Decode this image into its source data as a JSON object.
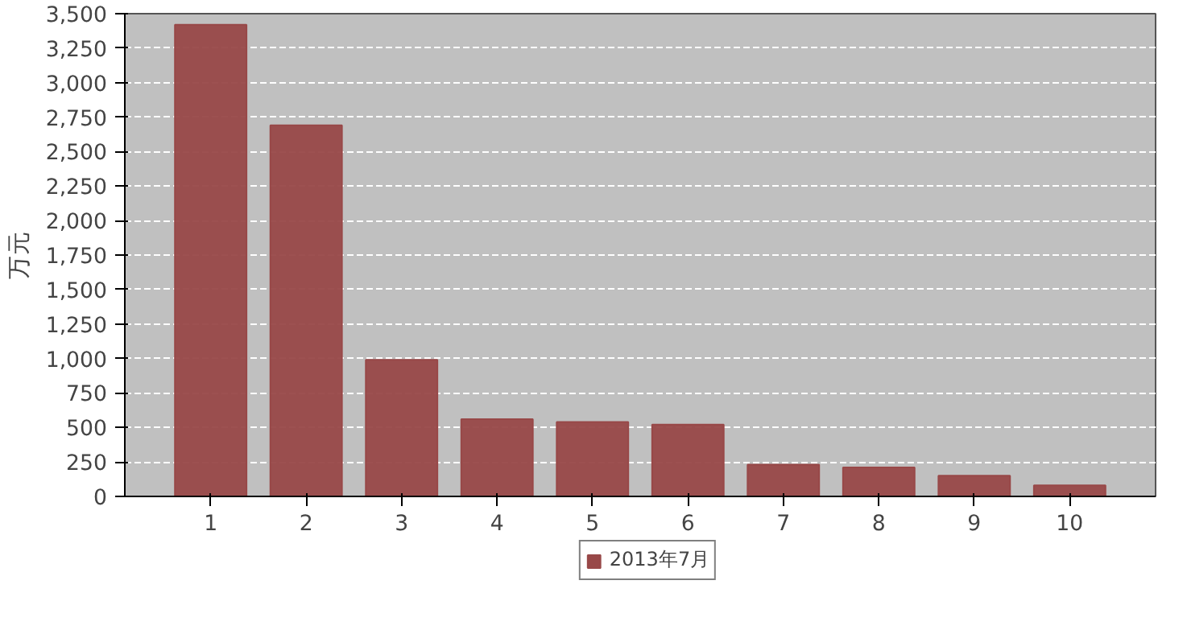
{
  "chart_data": {
    "type": "bar",
    "ylabel": "万元",
    "categories": [
      "1",
      "2",
      "3",
      "4",
      "5",
      "6",
      "7",
      "8",
      "9",
      "10"
    ],
    "series": [
      {
        "name": "2013年7月",
        "color": "#984848",
        "values": [
          3420,
          2690,
          990,
          560,
          540,
          520,
          230,
          210,
          150,
          80
        ]
      }
    ],
    "ylim": [
      0,
      3500
    ],
    "yticks": [
      {
        "value": 0,
        "label": "0"
      },
      {
        "value": 250,
        "label": "250"
      },
      {
        "value": 500,
        "label": "500"
      },
      {
        "value": 750,
        "label": "750"
      },
      {
        "value": 1000,
        "label": "1,000"
      },
      {
        "value": 1250,
        "label": "1,250"
      },
      {
        "value": 1500,
        "label": "1,500"
      },
      {
        "value": 1750,
        "label": "1,750"
      },
      {
        "value": 2000,
        "label": "2,000"
      },
      {
        "value": 2250,
        "label": "2,250"
      },
      {
        "value": 2500,
        "label": "2,500"
      },
      {
        "value": 2750,
        "label": "2,750"
      },
      {
        "value": 3000,
        "label": "3,000"
      },
      {
        "value": 3250,
        "label": "3,250"
      },
      {
        "value": 3500,
        "label": "3,500"
      }
    ],
    "grid": "y",
    "legend": "bottom"
  }
}
